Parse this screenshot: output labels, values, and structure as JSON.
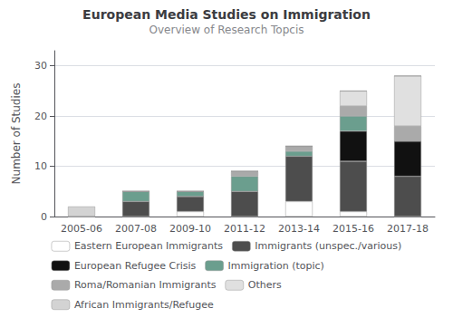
{
  "chart_data": {
    "type": "bar",
    "stacked": true,
    "title": "European Media Studies on Immigration",
    "subtitle": "Overview of Research Topcis",
    "ylabel": "Number of Studies",
    "categories": [
      "2005-06",
      "2007-08",
      "2009-10",
      "2011-12",
      "2013-14",
      "2015-16",
      "2017-18"
    ],
    "series": [
      {
        "name": "Eastern European Immigrants",
        "color": "#ffffff",
        "values": [
          0,
          0,
          1,
          0,
          3,
          1,
          0
        ]
      },
      {
        "name": "Immigrants (unspec./various)",
        "color": "#4d4d4d",
        "values": [
          0,
          3,
          3,
          5,
          9,
          10,
          8
        ]
      },
      {
        "name": "European Refugee Crisis",
        "color": "#111111",
        "values": [
          0,
          0,
          0,
          0,
          0,
          6,
          7
        ]
      },
      {
        "name": "Immigration (topic)",
        "color": "#6b9e8e",
        "values": [
          0,
          2,
          1,
          3,
          1,
          3,
          0
        ]
      },
      {
        "name": "Roma/Romanian Immigrants",
        "color": "#aaaaaa",
        "values": [
          0,
          0,
          0,
          1,
          1,
          2,
          3
        ]
      },
      {
        "name": "Others",
        "color": "#e0e0e0",
        "values": [
          0,
          0,
          0,
          0,
          0,
          3,
          10
        ]
      },
      {
        "name": "African Immigrants/Refugee",
        "color": "#d3d3d3",
        "values": [
          2,
          0,
          0,
          0,
          0,
          0,
          0
        ]
      }
    ],
    "ylim": [
      0,
      33
    ],
    "yticks": [
      0,
      10,
      20,
      30
    ],
    "grid": true,
    "legend": "bottom"
  }
}
